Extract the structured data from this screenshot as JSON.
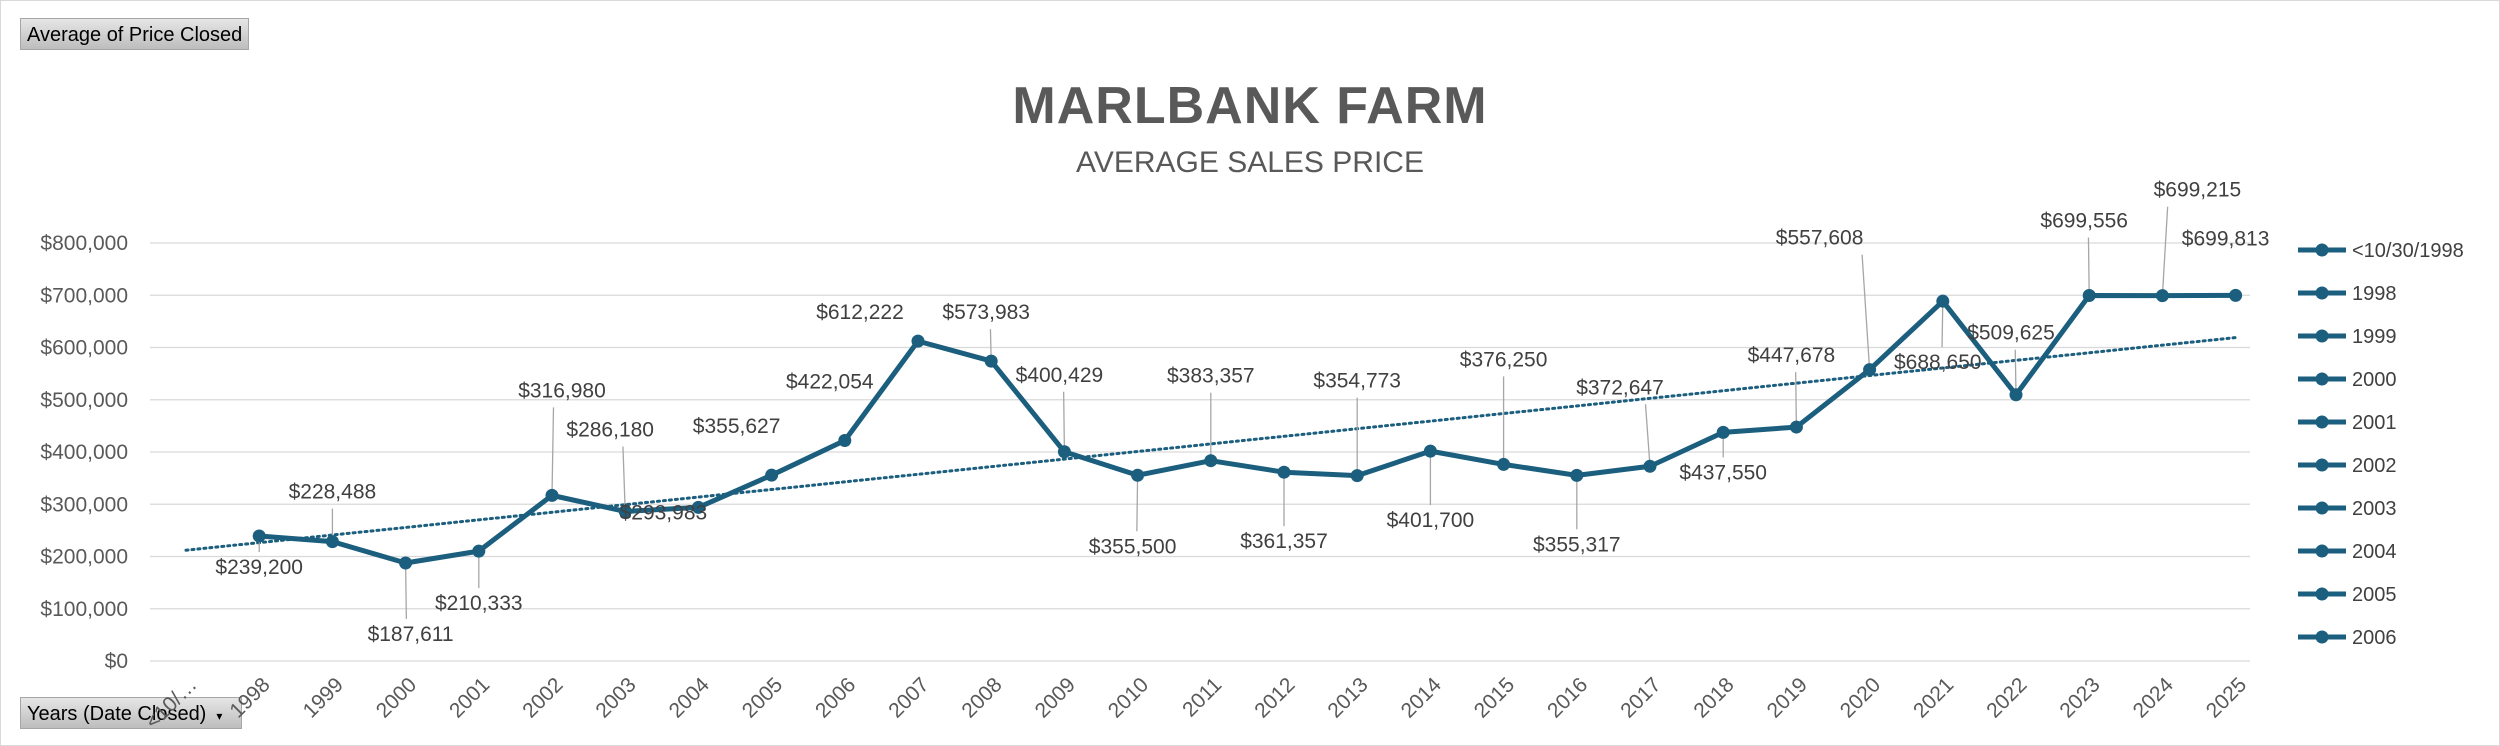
{
  "controls": {
    "value_field": "Average of Price Closed",
    "axis_field": "Years (Date Closed)",
    "axis_dropdown_icon": "dropdown-arrow-icon"
  },
  "chart_data": {
    "type": "line",
    "title": "MARLBANK FARM",
    "subtitle": "AVERAGE SALES PRICE",
    "xlabel": "",
    "ylabel": "",
    "categories": [
      "<10/30/1998",
      "1998",
      "1999",
      "2000",
      "2001",
      "2002",
      "2003",
      "2004",
      "2005",
      "2006",
      "2007",
      "2008",
      "2009",
      "2010",
      "2011",
      "2012",
      "2013",
      "2014",
      "2015",
      "2016",
      "2017",
      "2018",
      "2019",
      "2020",
      "2021",
      "2022",
      "2023",
      "2024",
      "2025"
    ],
    "x_tick_labels": [
      "<10/…",
      "1998",
      "1999",
      "2000",
      "2001",
      "2002",
      "2003",
      "2004",
      "2005",
      "2006",
      "2007",
      "2008",
      "2009",
      "2010",
      "2011",
      "2012",
      "2013",
      "2014",
      "2015",
      "2016",
      "2017",
      "2018",
      "2019",
      "2020",
      "2021",
      "2022",
      "2023",
      "2024",
      "2025"
    ],
    "series": [
      {
        "values": [
          null,
          239200,
          228488,
          187611,
          210333,
          316980,
          286180,
          293983,
          355627,
          422054,
          612222,
          573983,
          400429,
          355500,
          383357,
          361357,
          354773,
          401700,
          376250,
          355317,
          372647,
          437550,
          447678,
          557608,
          688650,
          509625,
          699556,
          699215,
          699813
        ],
        "labels": [
          "",
          "$239,200",
          "$228,488",
          "$187,611",
          "$210,333",
          "$316,980",
          "$286,180",
          "$293,983",
          "$355,627",
          "$422,054",
          "$612,222",
          "$573,983",
          "$400,429",
          "$355,500",
          "$383,357",
          "$361,357",
          "$354,773",
          "$401,700",
          "$376,250",
          "$355,317",
          "$372,647",
          "$437,550",
          "$447,678",
          "$557,608",
          "$688,650",
          "$509,625",
          "$699,556",
          "$699,215",
          "$699,813"
        ],
        "color": "#1b5e7e"
      }
    ],
    "trendline": {
      "type": "linear",
      "style": "dotted",
      "color": "#1b5e7e",
      "y_start": 212000,
      "y_end": 619000
    },
    "ylim": [
      0,
      800000
    ],
    "y_ticks": [
      0,
      100000,
      200000,
      300000,
      400000,
      500000,
      600000,
      700000,
      800000
    ],
    "y_tick_labels": [
      "$0",
      "$100,000",
      "$200,000",
      "$300,000",
      "$400,000",
      "$500,000",
      "$600,000",
      "$700,000",
      "$800,000"
    ],
    "grid": true,
    "legend": {
      "position": "right",
      "entries": [
        "<10/30/1998",
        "1998",
        "1999",
        "2000",
        "2001",
        "2002",
        "2003",
        "2004",
        "2005",
        "2006"
      ]
    }
  }
}
